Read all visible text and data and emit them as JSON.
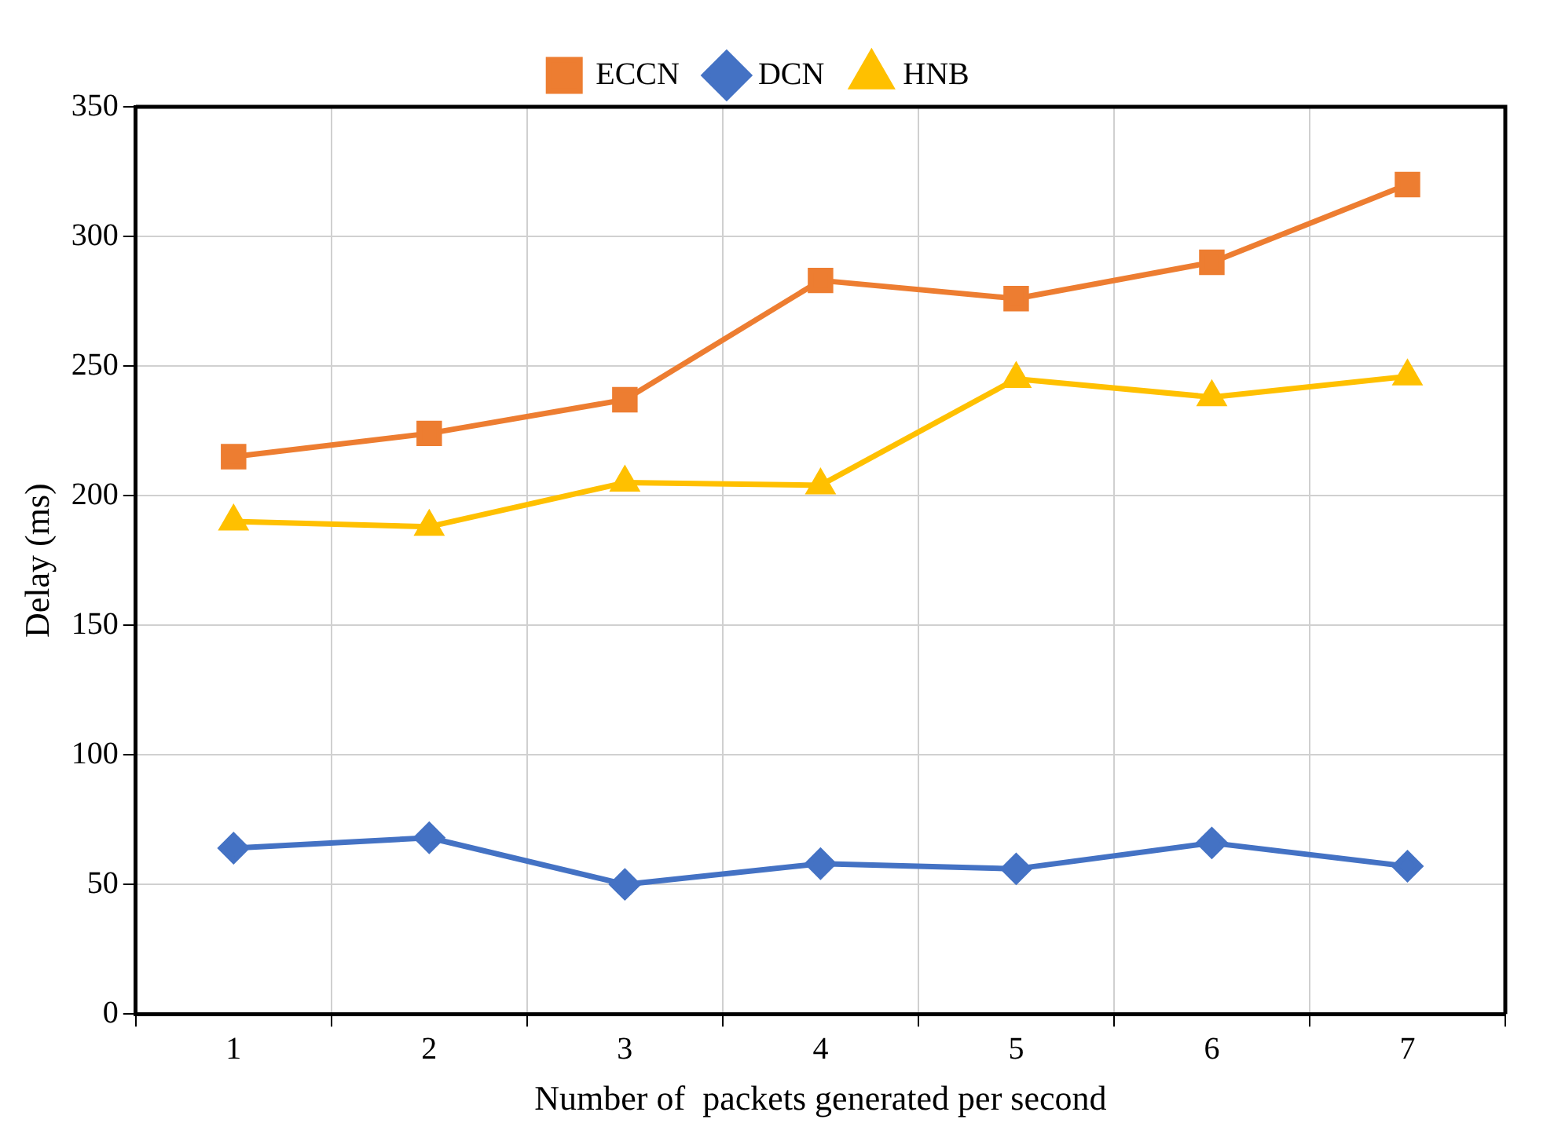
{
  "chart_data": {
    "type": "line",
    "xlabel": "Number of  packets generated per second",
    "ylabel": "Delay (ms)",
    "categories": [
      "1",
      "2",
      "3",
      "4",
      "5",
      "6",
      "7"
    ],
    "series": [
      {
        "name": "ECCN",
        "color": "#ed7d31",
        "marker": "square",
        "values": [
          215,
          224,
          237,
          283,
          276,
          290,
          320
        ]
      },
      {
        "name": "DCN",
        "color": "#4472c4",
        "marker": "diamond",
        "values": [
          64,
          68,
          50,
          58,
          56,
          66,
          57
        ]
      },
      {
        "name": "HNB",
        "color": "#ffc000",
        "marker": "triangle",
        "values": [
          190,
          188,
          205,
          204,
          245,
          238,
          246
        ]
      }
    ],
    "ylim": [
      0,
      350
    ],
    "yticks": [
      0,
      50,
      100,
      150,
      200,
      250,
      300,
      350
    ],
    "grid": true,
    "legend": "top",
    "line_style": "solid"
  }
}
